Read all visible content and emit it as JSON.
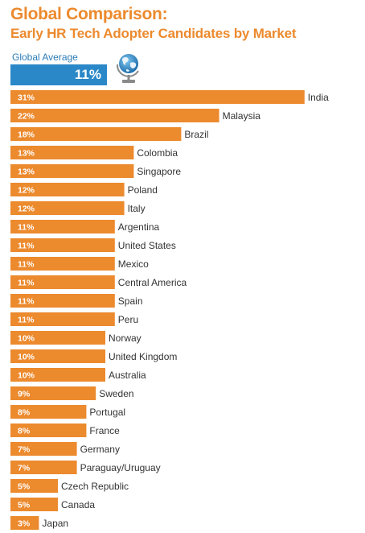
{
  "header": {
    "title": "Global Comparison:",
    "subtitle": "Early HR Tech Adopter Candidates by Market"
  },
  "average": {
    "label": "Global Average",
    "value_text": "11%",
    "value": 11,
    "color": "#2b88c8"
  },
  "icons": {
    "globe": "globe-icon"
  },
  "colors": {
    "bar": "#ec8a2e",
    "accent": "#ec8a2e",
    "average": "#2b88c8"
  },
  "chart_data": {
    "type": "bar",
    "orientation": "horizontal",
    "title": "Global Comparison:",
    "subtitle": "Early HR Tech Adopter Candidates by Market",
    "categories": [
      "India",
      "Malaysia",
      "Brazil",
      "Colombia",
      "Singapore",
      "Poland",
      "Italy",
      "Argentina",
      "United States",
      "Mexico",
      "Central America",
      "Spain",
      "Peru",
      "Norway",
      "United Kingdom",
      "Australia",
      "Sweden",
      "Portugal",
      "France",
      "Germany",
      "Paraguay/Uruguay",
      "Czech Republic",
      "Canada",
      "Japan"
    ],
    "values": [
      31,
      22,
      18,
      13,
      13,
      12,
      12,
      11,
      11,
      11,
      11,
      11,
      11,
      10,
      10,
      10,
      9,
      8,
      8,
      7,
      7,
      5,
      5,
      3
    ],
    "value_labels": [
      "31%",
      "22%",
      "18%",
      "13%",
      "13%",
      "12%",
      "12%",
      "11%",
      "11%",
      "11%",
      "11%",
      "11%",
      "11%",
      "10%",
      "10%",
      "10%",
      "9%",
      "8%",
      "8%",
      "7%",
      "7%",
      "5%",
      "5%",
      "3%"
    ],
    "unit": "%",
    "grid": false,
    "legend": "none"
  }
}
